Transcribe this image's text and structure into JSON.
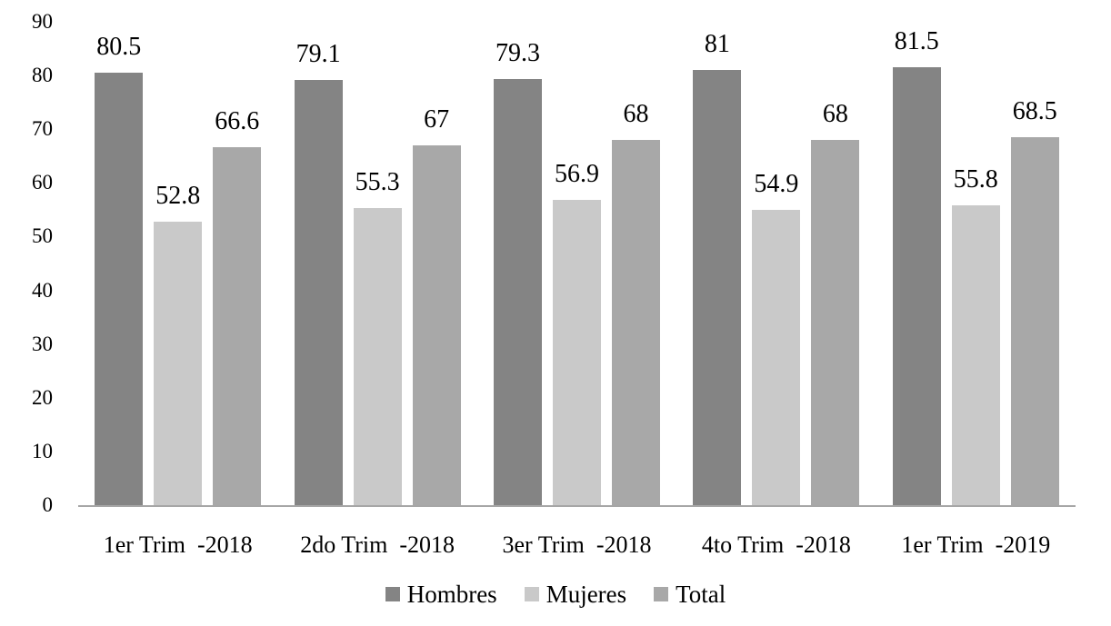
{
  "chart_data": {
    "type": "bar",
    "title": "",
    "xlabel": "",
    "ylabel": "",
    "categories": [
      "1er Trim  -2018",
      "2do Trim  -2018",
      "3er Trim  -2018",
      "4to Trim  -2018",
      "1er Trim  -2019"
    ],
    "series": [
      {
        "name": "Hombres",
        "color": "#848484",
        "values": [
          80.5,
          79.1,
          79.3,
          81,
          81.5
        ]
      },
      {
        "name": "Mujeres",
        "color": "#C9C9C9",
        "values": [
          52.8,
          55.3,
          56.9,
          54.9,
          55.8
        ]
      },
      {
        "name": "Total",
        "color": "#A8A8A8",
        "values": [
          66.6,
          67,
          68,
          68,
          68.5
        ]
      }
    ],
    "yticks": [
      0,
      10,
      20,
      30,
      40,
      50,
      60,
      70,
      80,
      90
    ],
    "ylim": [
      0,
      90
    ],
    "grid": false,
    "legend_position": "bottom",
    "data_labels": true,
    "styles": {
      "axis_line_color": "#A6A6A6",
      "text_color": "#000000",
      "background_color": "#FFFFFF"
    }
  }
}
